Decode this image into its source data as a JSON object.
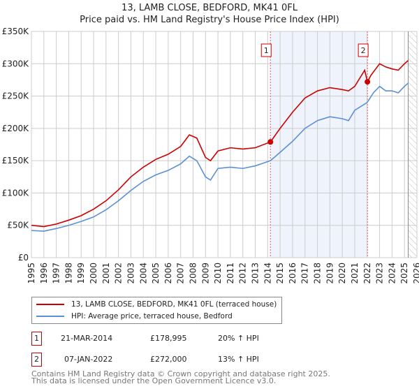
{
  "title": "13, LAMB CLOSE, BEDFORD, MK41 0FL",
  "subtitle": "Price paid vs. HM Land Registry's House Price Index (HPI)",
  "chart_data": {
    "type": "line",
    "xlim": [
      1995,
      2026
    ],
    "ylim": [
      0,
      350000
    ],
    "yticks": [
      0,
      50000,
      100000,
      150000,
      200000,
      250000,
      300000,
      350000
    ],
    "ytick_labels": [
      "£0",
      "£50K",
      "£100K",
      "£150K",
      "£200K",
      "£250K",
      "£300K",
      "£350K"
    ],
    "xticks": [
      1995,
      1996,
      1997,
      1998,
      1999,
      2000,
      2001,
      2002,
      2003,
      2004,
      2005,
      2006,
      2007,
      2008,
      2009,
      2010,
      2011,
      2012,
      2013,
      2014,
      2015,
      2016,
      2017,
      2018,
      2019,
      2020,
      2021,
      2022,
      2023,
      2024,
      2025,
      2026
    ],
    "grid": true,
    "shaded_range": [
      2014.22,
      2022.02
    ],
    "hatched_from": 2025.3,
    "series": [
      {
        "name": "13, LAMB CLOSE, BEDFORD, MK41 0FL (terraced house)",
        "color": "#cc0000",
        "x": [
          1995,
          1996,
          1997,
          1998,
          1999,
          2000,
          2001,
          2002,
          2003,
          2004,
          2005,
          2006,
          2007,
          2007.7,
          2008.3,
          2009,
          2009.4,
          2010,
          2011,
          2012,
          2013,
          2014.22,
          2015,
          2016,
          2017,
          2018,
          2019,
          2020,
          2020.5,
          2021,
          2021.8,
          2022.02,
          2022.3,
          2023,
          2023.5,
          2024,
          2024.5,
          2025,
          2025.3
        ],
        "y": [
          50000,
          48000,
          52000,
          58000,
          65000,
          75000,
          88000,
          105000,
          125000,
          140000,
          152000,
          160000,
          172000,
          190000,
          185000,
          155000,
          150000,
          165000,
          170000,
          168000,
          170000,
          178995,
          200000,
          225000,
          247000,
          258000,
          263000,
          260000,
          258000,
          265000,
          290000,
          272000,
          282000,
          300000,
          295000,
          292000,
          290000,
          300000,
          305000
        ]
      },
      {
        "name": "HPI: Average price, terraced house, Bedford",
        "color": "#5b8fd6",
        "x": [
          1995,
          1996,
          1997,
          1998,
          1999,
          2000,
          2001,
          2002,
          2003,
          2004,
          2005,
          2006,
          2007,
          2007.7,
          2008.3,
          2009,
          2009.4,
          2010,
          2011,
          2012,
          2013,
          2014.22,
          2015,
          2016,
          2017,
          2018,
          2019,
          2020,
          2020.5,
          2021,
          2022,
          2022.5,
          2023,
          2023.5,
          2024,
          2024.5,
          2025,
          2025.3
        ],
        "y": [
          42000,
          41000,
          45000,
          50000,
          56000,
          63000,
          74000,
          88000,
          104000,
          118000,
          128000,
          135000,
          145000,
          157000,
          150000,
          125000,
          120000,
          138000,
          140000,
          138000,
          142000,
          150000,
          163000,
          180000,
          200000,
          212000,
          218000,
          215000,
          212000,
          228000,
          240000,
          255000,
          265000,
          258000,
          258000,
          255000,
          265000,
          270000
        ]
      }
    ],
    "markers": [
      {
        "label": "1",
        "x": 2014.22,
        "y": 178995
      },
      {
        "label": "2",
        "x": 2022.02,
        "y": 272000
      }
    ]
  },
  "legend": {
    "items": [
      "13, LAMB CLOSE, BEDFORD, MK41 0FL (terraced house)",
      "HPI: Average price, terraced house, Bedford"
    ]
  },
  "transactions": [
    {
      "num": "1",
      "date": "21-MAR-2014",
      "price": "£178,995",
      "hpi": "20% ↑ HPI"
    },
    {
      "num": "2",
      "date": "07-JAN-2022",
      "price": "£272,000",
      "hpi": "13% ↑ HPI"
    }
  ],
  "footer": {
    "line1": "Contains HM Land Registry data © Crown copyright and database right 2025.",
    "line2": "This data is licensed under the Open Government Licence v3.0."
  }
}
